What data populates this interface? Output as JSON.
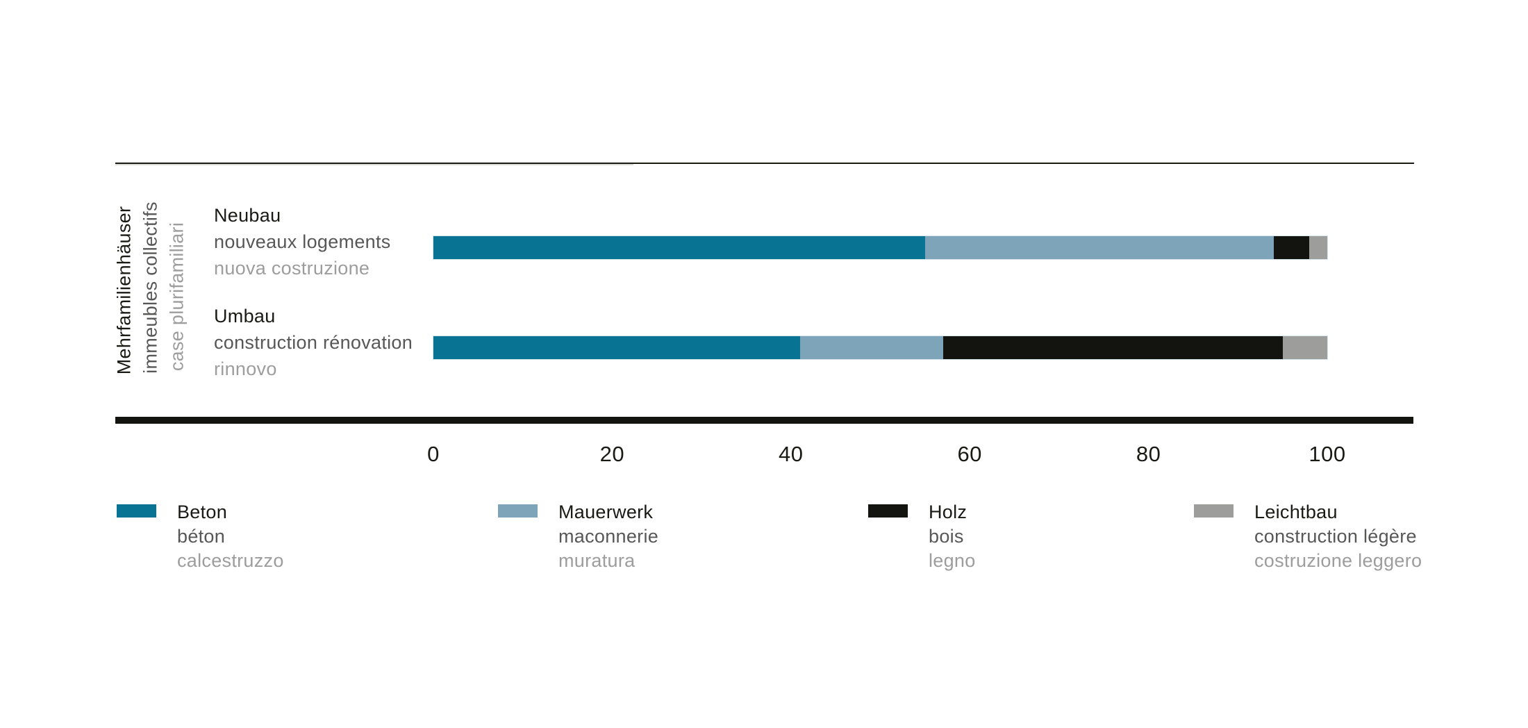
{
  "chart_data": {
    "type": "bar",
    "orientation": "horizontal",
    "stacked": true,
    "unit": "percent",
    "grid": false,
    "legend_position": "bottom",
    "row_group": {
      "de": "Mehrfamilienhäuser",
      "fr": "immeubles collectifs",
      "it": "case plurifamiliari"
    },
    "categories": [
      {
        "de": "Neubau",
        "fr": "nouveaux logements",
        "it": "nuova costruzione"
      },
      {
        "de": "Umbau",
        "fr": "construction rénovation",
        "it": "rinnovo"
      }
    ],
    "series": [
      {
        "de": "Beton",
        "fr": "béton",
        "it": "calcestruzzo",
        "color": "#087392",
        "values": [
          55,
          41
        ]
      },
      {
        "de": "Mauerwerk",
        "fr": "maconnerie",
        "it": "muratura",
        "color": "#7da4b8",
        "values": [
          39,
          16
        ]
      },
      {
        "de": "Holz",
        "fr": "bois",
        "it": "legno",
        "color": "#131310",
        "values": [
          4,
          38
        ]
      },
      {
        "de": "Leichtbau",
        "fr": "construction légère",
        "it": "costruzione leggero",
        "color": "#9d9d9c",
        "values": [
          2,
          5
        ]
      }
    ],
    "xlim": [
      0,
      100
    ],
    "x_ticks": [
      "0",
      "20",
      "40",
      "60",
      "80",
      "100"
    ]
  },
  "colors": {
    "text_primary": "#1a1a15",
    "text_secondary": "#575756",
    "text_tertiary": "#9d9d9c",
    "axis": "#131310"
  }
}
